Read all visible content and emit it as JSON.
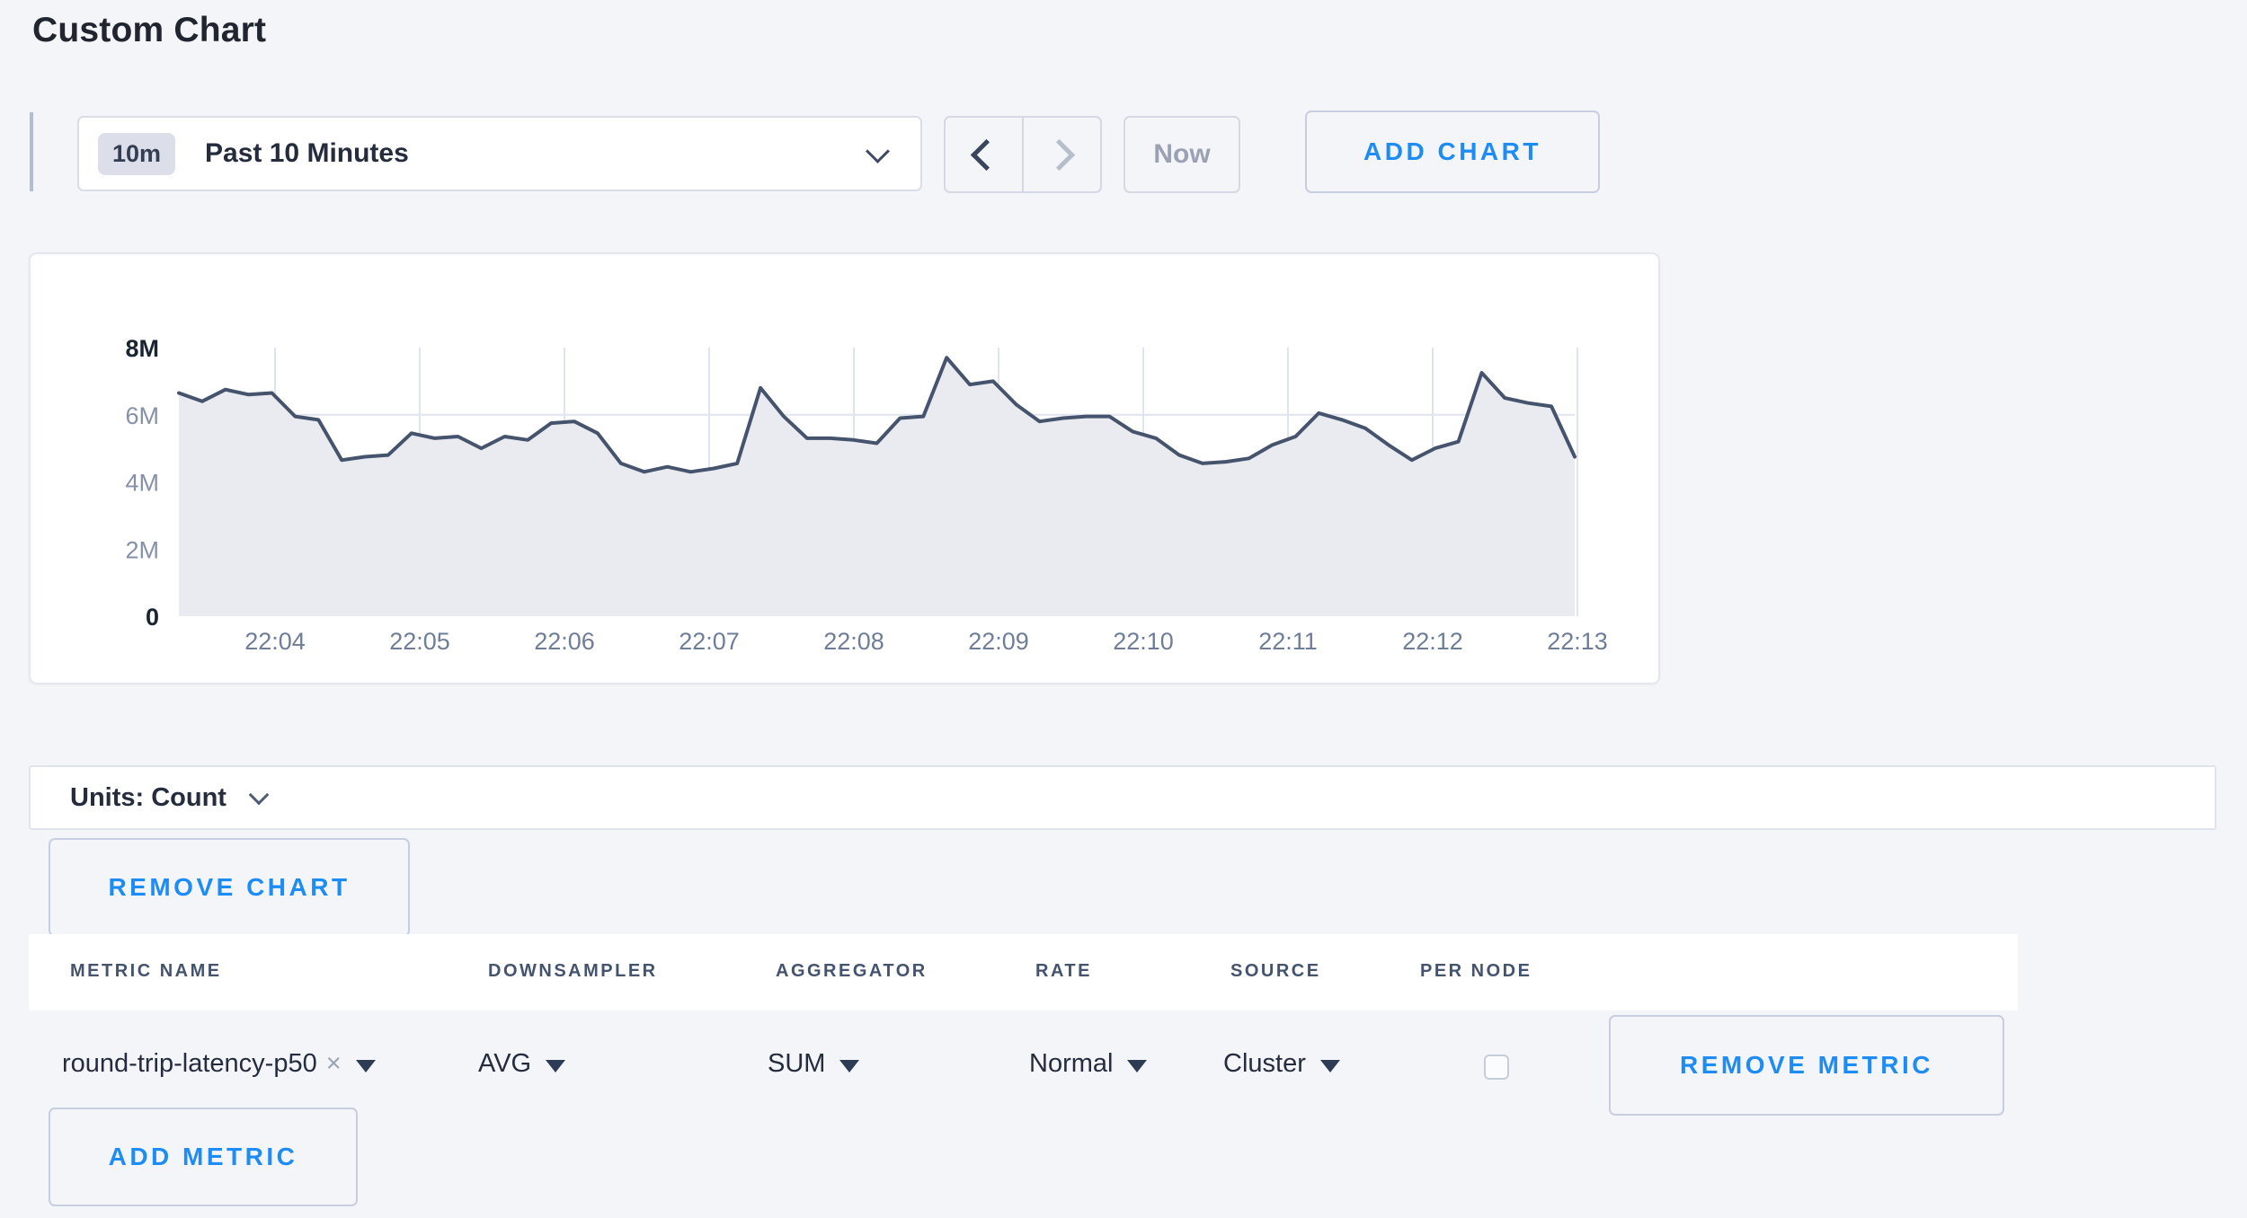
{
  "page": {
    "title": "Custom Chart"
  },
  "colors": {
    "accent_blue": "#1d8cf5",
    "line": "#45536d",
    "area_fill": "#e9ebf1",
    "grid": "#dfe4ee",
    "ylabel_bold": "#1b2433",
    "ylabel_light": "#8591a9",
    "xlabel": "#6e7e98"
  },
  "controls": {
    "range_badge": "10m",
    "range_label": "Past 10 Minutes",
    "now_label": "Now",
    "add_chart_label": "ADD CHART"
  },
  "units": {
    "label": "Units: Count"
  },
  "buttons": {
    "remove_chart": "REMOVE CHART",
    "remove_metric": "REMOVE METRIC",
    "add_metric": "ADD METRIC"
  },
  "table": {
    "headers": [
      {
        "label": "METRIC NAME"
      },
      {
        "label": "DOWNSAMPLER"
      },
      {
        "label": "AGGREGATOR"
      },
      {
        "label": "RATE"
      },
      {
        "label": "SOURCE"
      },
      {
        "label": "PER NODE"
      }
    ],
    "row": {
      "metric_name": "round-trip-latency-p50",
      "remove_icon": "×",
      "downsampler": "AVG",
      "aggregator": "SUM",
      "rate": "Normal",
      "source": "Cluster",
      "per_node_checked": false
    }
  },
  "chart_data": {
    "type": "area",
    "title": "",
    "xlabel": "",
    "ylabel": "",
    "ylim": [
      0,
      8000000
    ],
    "y_tick_labels": [
      "8M",
      "6M",
      "4M",
      "2M",
      "0"
    ],
    "y_tick_values": [
      8,
      6,
      4,
      2,
      0
    ],
    "x_tick_labels": [
      "22:04",
      "22:05",
      "22:06",
      "22:07",
      "22:08",
      "22:09",
      "22:10",
      "22:11",
      "22:12",
      "22:13"
    ],
    "grid": true,
    "legend": "none",
    "series_name": "round-trip-latency-p50 (SUM of AVG, Cluster)",
    "values_unit": "M",
    "values": [
      6.65,
      6.4,
      6.75,
      6.6,
      6.65,
      5.95,
      5.85,
      4.65,
      4.75,
      4.8,
      5.45,
      5.3,
      5.35,
      5.0,
      5.35,
      5.25,
      5.75,
      5.8,
      5.45,
      4.55,
      4.3,
      4.45,
      4.3,
      4.4,
      4.55,
      6.8,
      5.95,
      5.3,
      5.3,
      5.25,
      5.15,
      5.9,
      5.95,
      7.7,
      6.9,
      7.0,
      6.3,
      5.8,
      5.9,
      5.95,
      5.95,
      5.5,
      5.3,
      4.8,
      4.55,
      4.6,
      4.7,
      5.1,
      5.35,
      6.05,
      5.85,
      5.6,
      5.1,
      4.65,
      5.0,
      5.2,
      7.25,
      6.5,
      6.35,
      6.25,
      4.75
    ]
  }
}
